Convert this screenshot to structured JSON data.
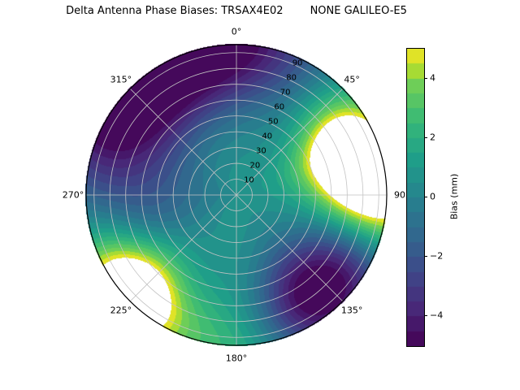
{
  "title": "Delta Antenna Phase Biases: TRSAX4E02        NONE GALILEO-E5",
  "chart_data": {
    "type": "heatmap",
    "projection": "polar",
    "title": "Delta Antenna Phase Biases: TRSAX4E02        NONE GALILEO-E5",
    "azimuth_ticks": [
      {
        "angle_deg": 0,
        "label": "0°"
      },
      {
        "angle_deg": 45,
        "label": "45°"
      },
      {
        "angle_deg": 90,
        "label": "90"
      },
      {
        "angle_deg": 135,
        "label": "135°"
      },
      {
        "angle_deg": 180,
        "label": "180°"
      },
      {
        "angle_deg": 225,
        "label": "225°"
      },
      {
        "angle_deg": 270,
        "label": "270°"
      },
      {
        "angle_deg": 315,
        "label": "315°"
      }
    ],
    "radial_ticks": [
      {
        "value": 10,
        "label": "10"
      },
      {
        "value": 20,
        "label": "20"
      },
      {
        "value": 30,
        "label": "30"
      },
      {
        "value": 40,
        "label": "40"
      },
      {
        "value": 50,
        "label": "50"
      },
      {
        "value": 60,
        "label": "60"
      },
      {
        "value": 70,
        "label": "70"
      },
      {
        "value": 80,
        "label": "80"
      },
      {
        "value": 90,
        "label": "90"
      }
    ],
    "rmax": 95,
    "radial_label_angle_deg": 22.5,
    "grid_color": "#c3c3c3",
    "outline_color": "#000000",
    "colorbar": {
      "label": "Bias (mm)",
      "vmin": -5,
      "vmax": 5,
      "level_step": 0.5,
      "ticks": [
        {
          "value": -4,
          "label": "−4"
        },
        {
          "value": -2,
          "label": "−2"
        },
        {
          "value": 0,
          "label": "0"
        },
        {
          "value": 2,
          "label": "2"
        },
        {
          "value": 4,
          "label": "4"
        }
      ]
    },
    "colormap": {
      "name": "viridis",
      "over_color": "#ffffff",
      "stops": [
        {
          "t": 0,
          "c": "#440154"
        },
        {
          "t": 0.125,
          "c": "#482878"
        },
        {
          "t": 0.25,
          "c": "#3e4989"
        },
        {
          "t": 0.375,
          "c": "#31688e"
        },
        {
          "t": 0.5,
          "c": "#26828e"
        },
        {
          "t": 0.625,
          "c": "#1f9e89"
        },
        {
          "t": 0.75,
          "c": "#35b779"
        },
        {
          "t": 0.875,
          "c": "#6ece58"
        },
        {
          "t": 0.9375,
          "c": "#b5de2b"
        },
        {
          "t": 1,
          "c": "#fde725"
        }
      ]
    },
    "field_model": {
      "base": 0.75,
      "gaussians": [
        {
          "az": 350,
          "r": 95,
          "amp": -6.0,
          "saz": 30,
          "sr": 28
        },
        {
          "az": 310,
          "r": 95,
          "amp": -5.0,
          "saz": 25,
          "sr": 30
        },
        {
          "az": 70,
          "r": 75,
          "amp": 8.0,
          "saz": 18,
          "sr": 22
        },
        {
          "az": 95,
          "r": 95,
          "amp": 4.0,
          "saz": 12,
          "sr": 25
        },
        {
          "az": 228,
          "r": 88,
          "amp": 7.5,
          "saz": 17,
          "sr": 22
        },
        {
          "az": 140,
          "r": 80,
          "amp": -6.5,
          "saz": 22,
          "sr": 25
        },
        {
          "az": 270,
          "r": 55,
          "amp": -2.2,
          "saz": 35,
          "sr": 30
        },
        {
          "az": 180,
          "r": 95,
          "amp": 2.2,
          "saz": 18,
          "sr": 25
        }
      ]
    },
    "sampled_grid": {
      "azimuth_deg": [
        0,
        45,
        90,
        135,
        180,
        225,
        270,
        315
      ],
      "zenith_deg": [
        0,
        30,
        60,
        90
      ],
      "bias_mm": [
        [
          0.7,
          0.3,
          -1.9,
          -4.9
        ],
        [
          0.7,
          1.3,
          2.3,
          1.6
        ],
        [
          0.7,
          1.2,
          3.1,
          5.0
        ],
        [
          0.7,
          0.3,
          -1.5,
          -4.2
        ],
        [
          0.7,
          0.8,
          1.0,
          2.3
        ],
        [
          0.7,
          0.8,
          2.4,
          5.0
        ],
        [
          0.7,
          0.4,
          -1.2,
          -0.8
        ],
        [
          0.7,
          0.0,
          -1.7,
          -4.4
        ]
      ]
    }
  }
}
